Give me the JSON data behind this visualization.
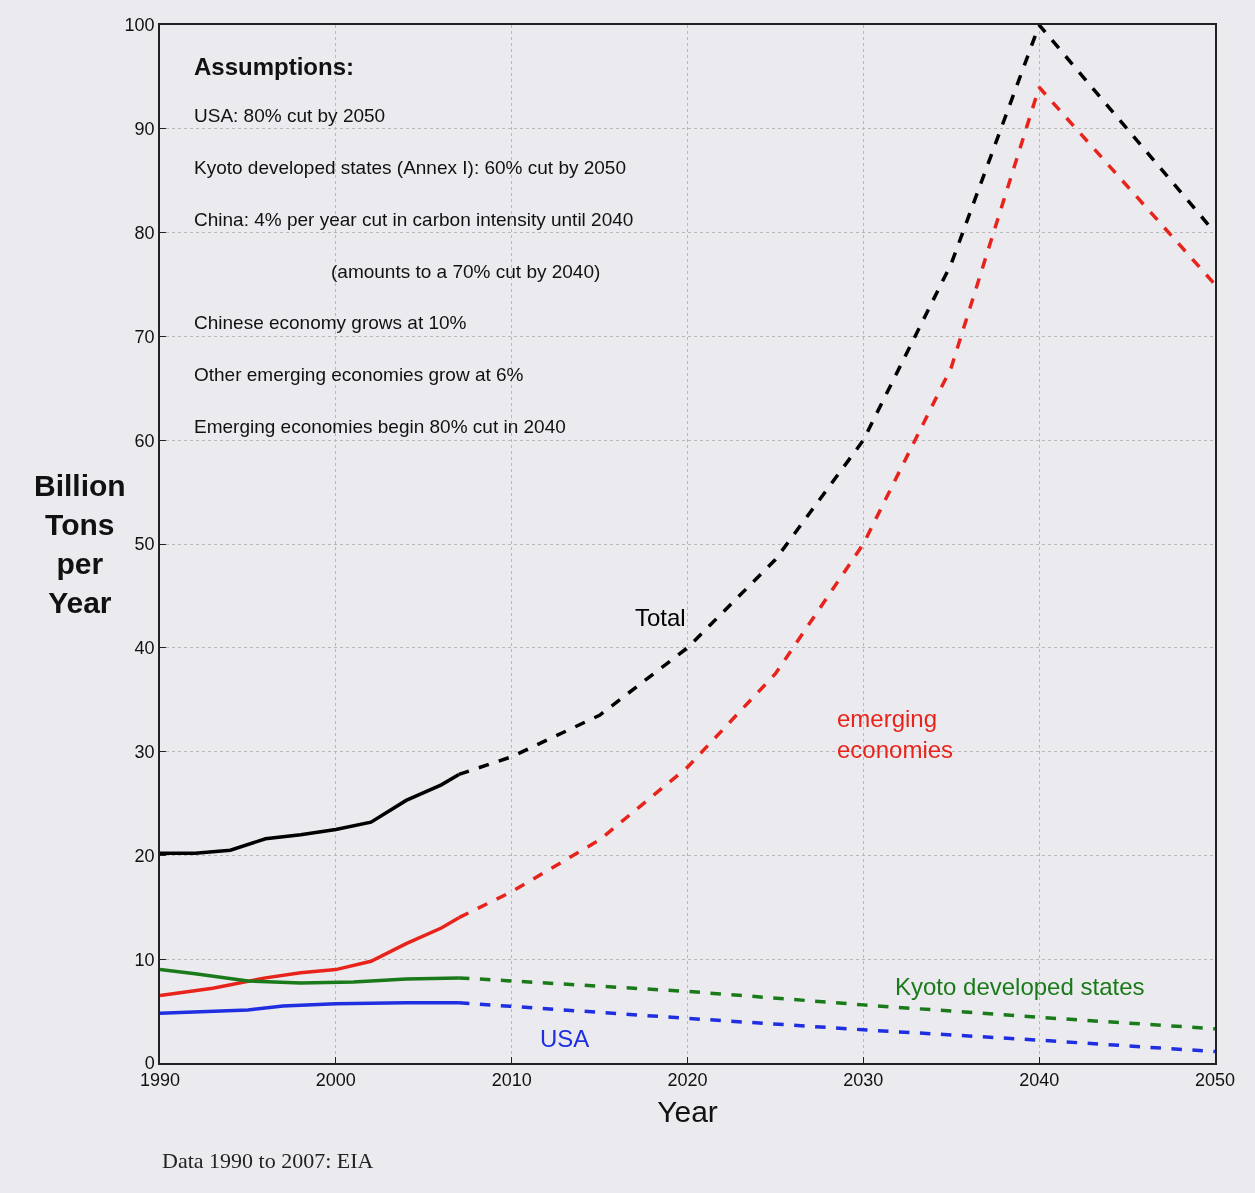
{
  "chart_data": {
    "type": "line",
    "xlabel": "Year",
    "ylabel": "Billion\nTons\nper\nYear",
    "xlim": [
      1990,
      2050
    ],
    "xticks": [
      1990,
      2000,
      2010,
      2020,
      2030,
      2040,
      2050
    ],
    "ylim": [
      0,
      100
    ],
    "yticks": [
      0,
      10,
      20,
      30,
      40,
      50,
      60,
      70,
      80,
      90,
      100
    ],
    "grid": true,
    "legend": false,
    "series": [
      {
        "color": "#000000",
        "line_style": "solid",
        "x": [
          1990,
          1992,
          1994,
          1996,
          1998,
          2000,
          2002,
          2004,
          2006,
          2007
        ],
        "values": [
          20.2,
          20.2,
          20.5,
          21.6,
          22,
          22.5,
          23.2,
          25.3,
          26.8,
          27.8
        ]
      },
      {
        "name": "Total",
        "color": "#000000",
        "line_style": "dashed",
        "x": [
          2007,
          2010,
          2015,
          2020,
          2025,
          2030,
          2035,
          2040,
          2050
        ],
        "values": [
          27.8,
          29.5,
          33.5,
          40,
          48.5,
          60,
          77,
          100,
          80
        ]
      },
      {
        "color": "#e8231b",
        "line_style": "solid",
        "x": [
          1990,
          1993,
          1996,
          1998,
          2000,
          2002,
          2004,
          2006,
          2007
        ],
        "values": [
          6.5,
          7.2,
          8.2,
          8.7,
          9,
          9.8,
          11.5,
          13,
          14
        ]
      },
      {
        "name": "emerging\neconomies",
        "color": "#e8231b",
        "line_style": "dashed",
        "x": [
          2007,
          2010,
          2015,
          2020,
          2025,
          2030,
          2035,
          2040,
          2050
        ],
        "values": [
          14,
          16.5,
          21.5,
          28.5,
          37.5,
          50,
          67,
          94,
          75
        ]
      },
      {
        "color": "#1a7a1a",
        "line_style": "solid",
        "x": [
          1990,
          1992,
          1995,
          1998,
          2001,
          2004,
          2007
        ],
        "values": [
          9,
          8.6,
          7.9,
          7.7,
          7.8,
          8.1,
          8.2
        ]
      },
      {
        "name": "Kyoto developed states",
        "color": "#1a7a1a",
        "line_style": "dashed",
        "x": [
          2007,
          2020,
          2030,
          2040,
          2050
        ],
        "values": [
          8.2,
          6.9,
          5.6,
          4.4,
          3.3
        ]
      },
      {
        "color": "#1f2ee0",
        "line_style": "solid",
        "x": [
          1990,
          1995,
          1997,
          2000,
          2004,
          2007
        ],
        "values": [
          4.8,
          5.1,
          5.5,
          5.7,
          5.8,
          5.8
        ]
      },
      {
        "name": "USA",
        "color": "#1f2ee0",
        "line_style": "dashed",
        "x": [
          2007,
          2020,
          2030,
          2040,
          2050
        ],
        "values": [
          5.8,
          4.3,
          3.2,
          2.2,
          1.1
        ]
      }
    ],
    "annotations": [
      "Assumptions:",
      "USA: 80% cut by 2050",
      "Kyoto developed states (Annex I): 60% cut by 2050",
      "China: 4% per year cut in carbon intensity until 2040",
      "(amounts to a 70% cut by 2040)",
      "Chinese economy grows at 10%",
      "Other emerging economies grow at 6%",
      "Emerging economies begin 80% cut in 2040",
      "Data 1990 to 2007: EIA"
    ]
  }
}
